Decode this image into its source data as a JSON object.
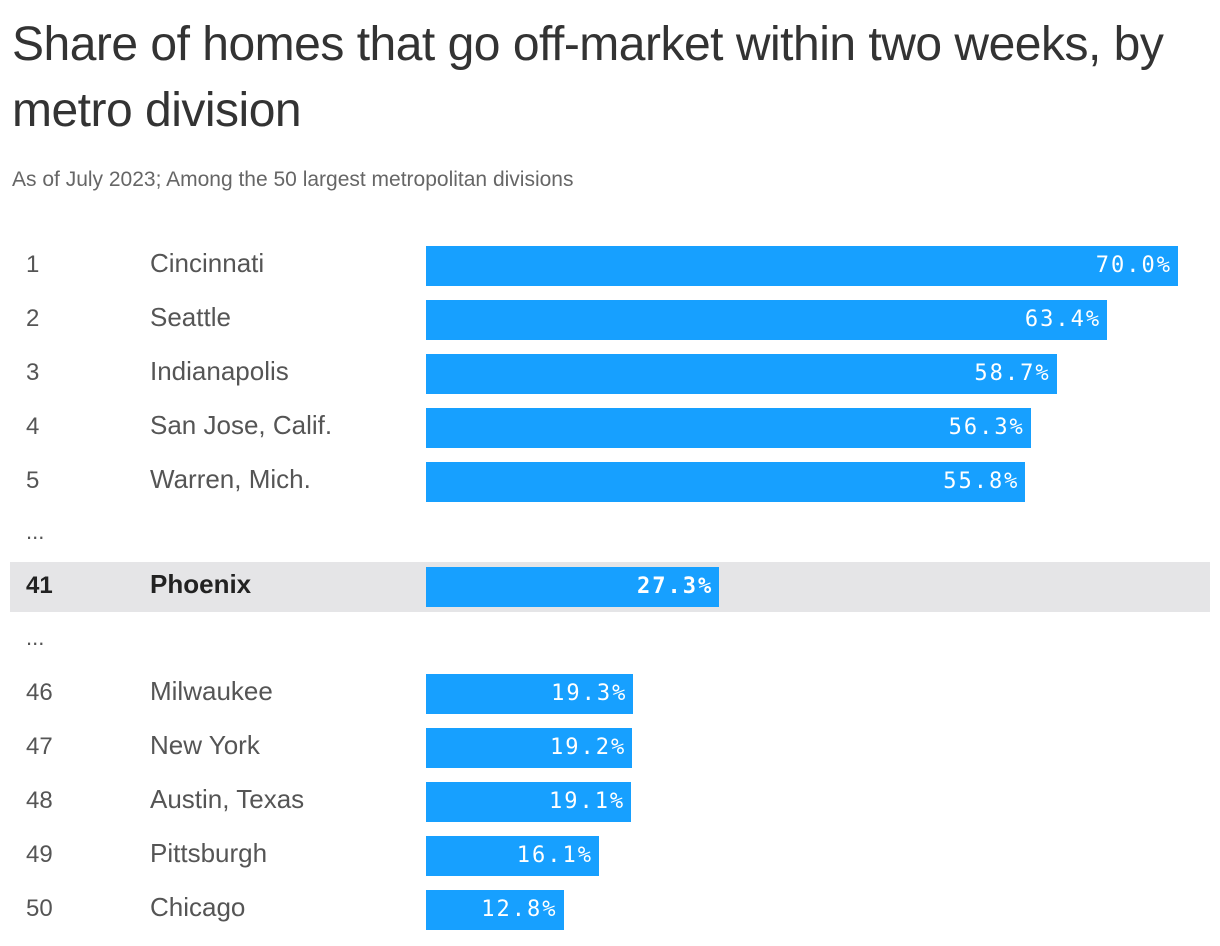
{
  "title": "Share of homes that go off-market within two weeks, by metro division",
  "subtitle": "As of July 2023; Among the 50 largest metropolitan divisions",
  "colors": {
    "bar": "#17a0ff",
    "highlight_row": "#e5e5e7",
    "text": "#333333"
  },
  "ellipsis": "...",
  "chart_data": {
    "type": "bar",
    "orientation": "horizontal",
    "title": "Share of homes that go off-market within two weeks, by metro division",
    "subtitle": "As of July 2023; Among the 50 largest metropolitan divisions",
    "xlim": [
      0,
      70
    ],
    "highlight": "Phoenix",
    "rows": [
      {
        "rank": "1",
        "city": "Cincinnati",
        "value": 70.0,
        "label": "70.0%"
      },
      {
        "rank": "2",
        "city": "Seattle",
        "value": 63.4,
        "label": "63.4%"
      },
      {
        "rank": "3",
        "city": "Indianapolis",
        "value": 58.7,
        "label": "58.7%"
      },
      {
        "rank": "4",
        "city": "San Jose, Calif.",
        "value": 56.3,
        "label": "56.3%"
      },
      {
        "rank": "5",
        "city": "Warren, Mich.",
        "value": 55.8,
        "label": "55.8%"
      },
      {
        "ellipsis": true
      },
      {
        "rank": "41",
        "city": "Phoenix",
        "value": 27.3,
        "label": "27.3%",
        "highlight": true
      },
      {
        "ellipsis": true
      },
      {
        "rank": "46",
        "city": "Milwaukee",
        "value": 19.3,
        "label": "19.3%"
      },
      {
        "rank": "47",
        "city": "New York",
        "value": 19.2,
        "label": "19.2%"
      },
      {
        "rank": "48",
        "city": "Austin, Texas",
        "value": 19.1,
        "label": "19.1%"
      },
      {
        "rank": "49",
        "city": "Pittsburgh",
        "value": 16.1,
        "label": "16.1%"
      },
      {
        "rank": "50",
        "city": "Chicago",
        "value": 12.8,
        "label": "12.8%"
      }
    ]
  }
}
